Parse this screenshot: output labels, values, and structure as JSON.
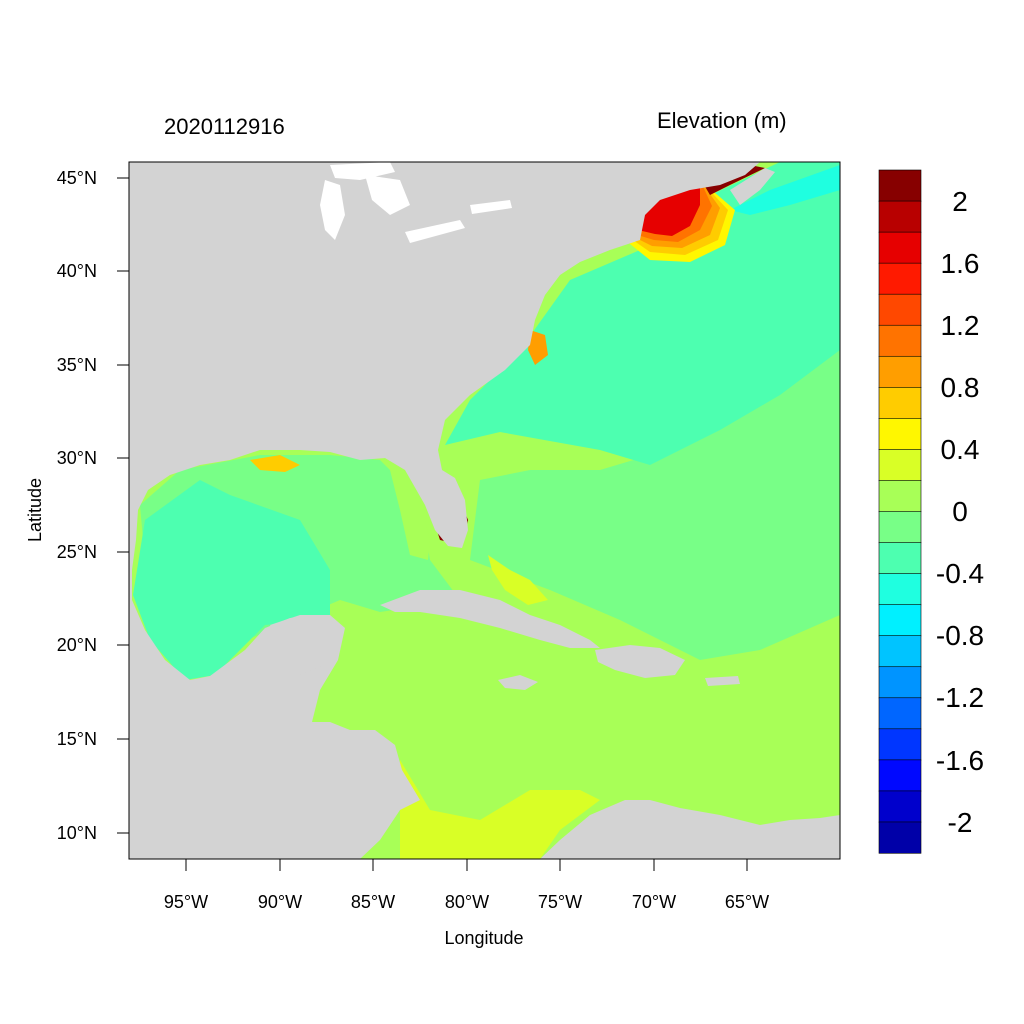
{
  "header": {
    "timestamp": "2020112916",
    "colorbar_title": "Elevation (m)"
  },
  "axes": {
    "xlabel": "Longitude",
    "ylabel": "Latitude",
    "x_ticks": [
      "95°W",
      "90°W",
      "85°W",
      "80°W",
      "75°W",
      "70°W",
      "65°W"
    ],
    "y_ticks": [
      "45°N",
      "40°N",
      "35°N",
      "30°N",
      "25°N",
      "20°N",
      "15°N",
      "10°N"
    ]
  },
  "colorbar": {
    "tick_labels": [
      "2",
      "1.6",
      "1.2",
      "0.8",
      "0.4",
      "0",
      "-0.4",
      "-0.8",
      "-1.2",
      "-1.6",
      "-2"
    ],
    "colors_top_to_bottom": [
      "#870000",
      "#b80000",
      "#e60000",
      "#ff1a00",
      "#ff4800",
      "#ff7300",
      "#ff9e00",
      "#ffcc00",
      "#fff700",
      "#d9ff26",
      "#a8ff57",
      "#78ff87",
      "#4dffb0",
      "#1fffe0",
      "#00f0ff",
      "#00c4ff",
      "#0094ff",
      "#0066ff",
      "#0036ff",
      "#0008ff",
      "#0000cc",
      "#0000a8"
    ]
  },
  "map": {
    "land_color": "#d3d3d3",
    "lake_color": "#ffffff",
    "ocean_base_color": "#a8ff57"
  }
}
